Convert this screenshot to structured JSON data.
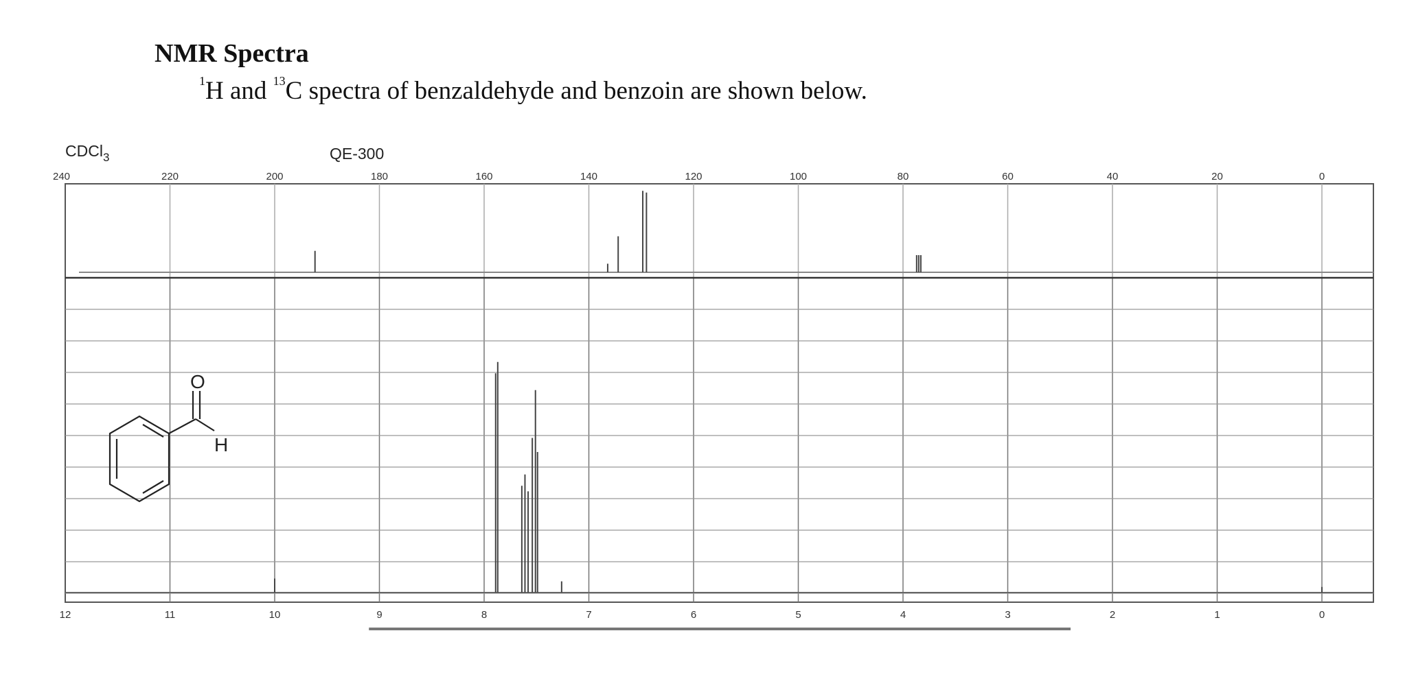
{
  "header": {
    "title": "NMR Spectra",
    "subtitle_sup1": "1",
    "subtitle_part1": "H and ",
    "subtitle_sup2": "13",
    "subtitle_part2": "C spectra of benzaldehyde and benzoin are shown below."
  },
  "labels": {
    "solvent_main": "CDCl",
    "solvent_sub": "3",
    "instrument": "QE-300"
  },
  "molecule": {
    "oxygen_label": "O",
    "hydrogen_label": "H"
  },
  "chart_data": [
    {
      "type": "line",
      "spectrum": "13C NMR",
      "xlim": [
        240,
        0
      ],
      "x_tick_labels": [
        "240",
        "220",
        "200",
        "180",
        "160",
        "140",
        "120",
        "100",
        "80",
        "60",
        "40",
        "20",
        "0"
      ],
      "x_ticks": [
        240,
        220,
        200,
        180,
        160,
        140,
        120,
        100,
        80,
        60,
        40,
        20,
        0
      ],
      "peaks": [
        {
          "x": 192.3,
          "height": 0.25
        },
        {
          "x": 136.4,
          "height": 0.1
        },
        {
          "x": 134.4,
          "height": 0.42
        },
        {
          "x": 129.7,
          "height": 0.95
        },
        {
          "x": 129.0,
          "height": 0.93
        },
        {
          "x": 77.4,
          "height": 0.2
        },
        {
          "x": 77.0,
          "height": 0.2
        },
        {
          "x": 76.6,
          "height": 0.2
        }
      ]
    },
    {
      "type": "line",
      "spectrum": "1H NMR",
      "xlim": [
        12,
        0
      ],
      "x_tick_labels": [
        "12",
        "11",
        "10",
        "9",
        "8",
        "7",
        "6",
        "5",
        "4",
        "3",
        "2",
        "1",
        "0"
      ],
      "x_ticks": [
        12,
        11,
        10,
        9,
        8,
        7,
        6,
        5,
        4,
        3,
        2,
        1,
        0
      ],
      "integral_range": [
        9.1,
        2.4
      ],
      "peaks": [
        {
          "x": 10.0,
          "height": 0.05
        },
        {
          "x": 7.89,
          "height": 0.78
        },
        {
          "x": 7.87,
          "height": 0.82
        },
        {
          "x": 7.64,
          "height": 0.38
        },
        {
          "x": 7.61,
          "height": 0.42
        },
        {
          "x": 7.58,
          "height": 0.36
        },
        {
          "x": 7.54,
          "height": 0.55
        },
        {
          "x": 7.51,
          "height": 0.72
        },
        {
          "x": 7.49,
          "height": 0.5
        },
        {
          "x": 7.26,
          "height": 0.04
        },
        {
          "x": 0.0,
          "height": 0.02
        }
      ]
    }
  ]
}
